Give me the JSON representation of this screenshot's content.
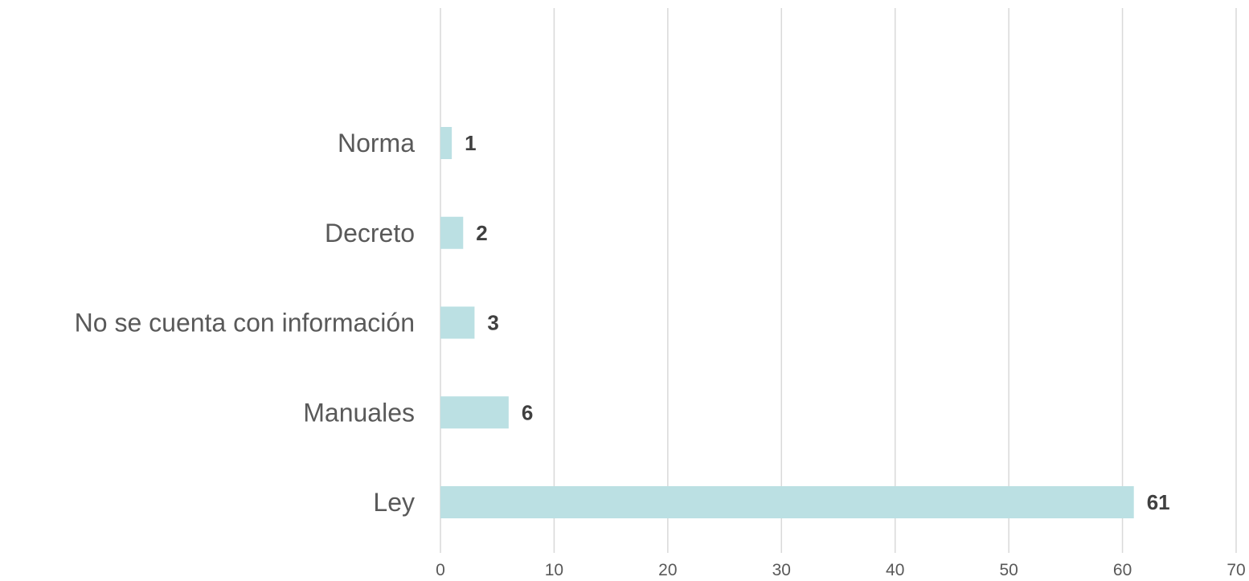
{
  "chart_data": {
    "type": "bar",
    "orientation": "horizontal",
    "categories": [
      "Norma",
      "Decreto",
      "No se cuenta con información",
      "Manuales",
      "Ley"
    ],
    "values": [
      1,
      2,
      3,
      6,
      61
    ],
    "data_labels": [
      "1",
      "2",
      "3",
      "6",
      "61"
    ],
    "title": "",
    "xlabel": "",
    "ylabel": "",
    "xlim": [
      0,
      70
    ],
    "x_ticks": [
      0,
      10,
      20,
      30,
      40,
      50,
      60,
      70
    ],
    "x_tick_labels": [
      "0",
      "10",
      "20",
      "30",
      "40",
      "50",
      "60",
      "70"
    ],
    "grid": "vertical",
    "legend": "none",
    "bar_color": "#bbe0e3",
    "grid_color": "#d9d9d9",
    "label_color": "#595959",
    "data_label_color": "#404040"
  }
}
